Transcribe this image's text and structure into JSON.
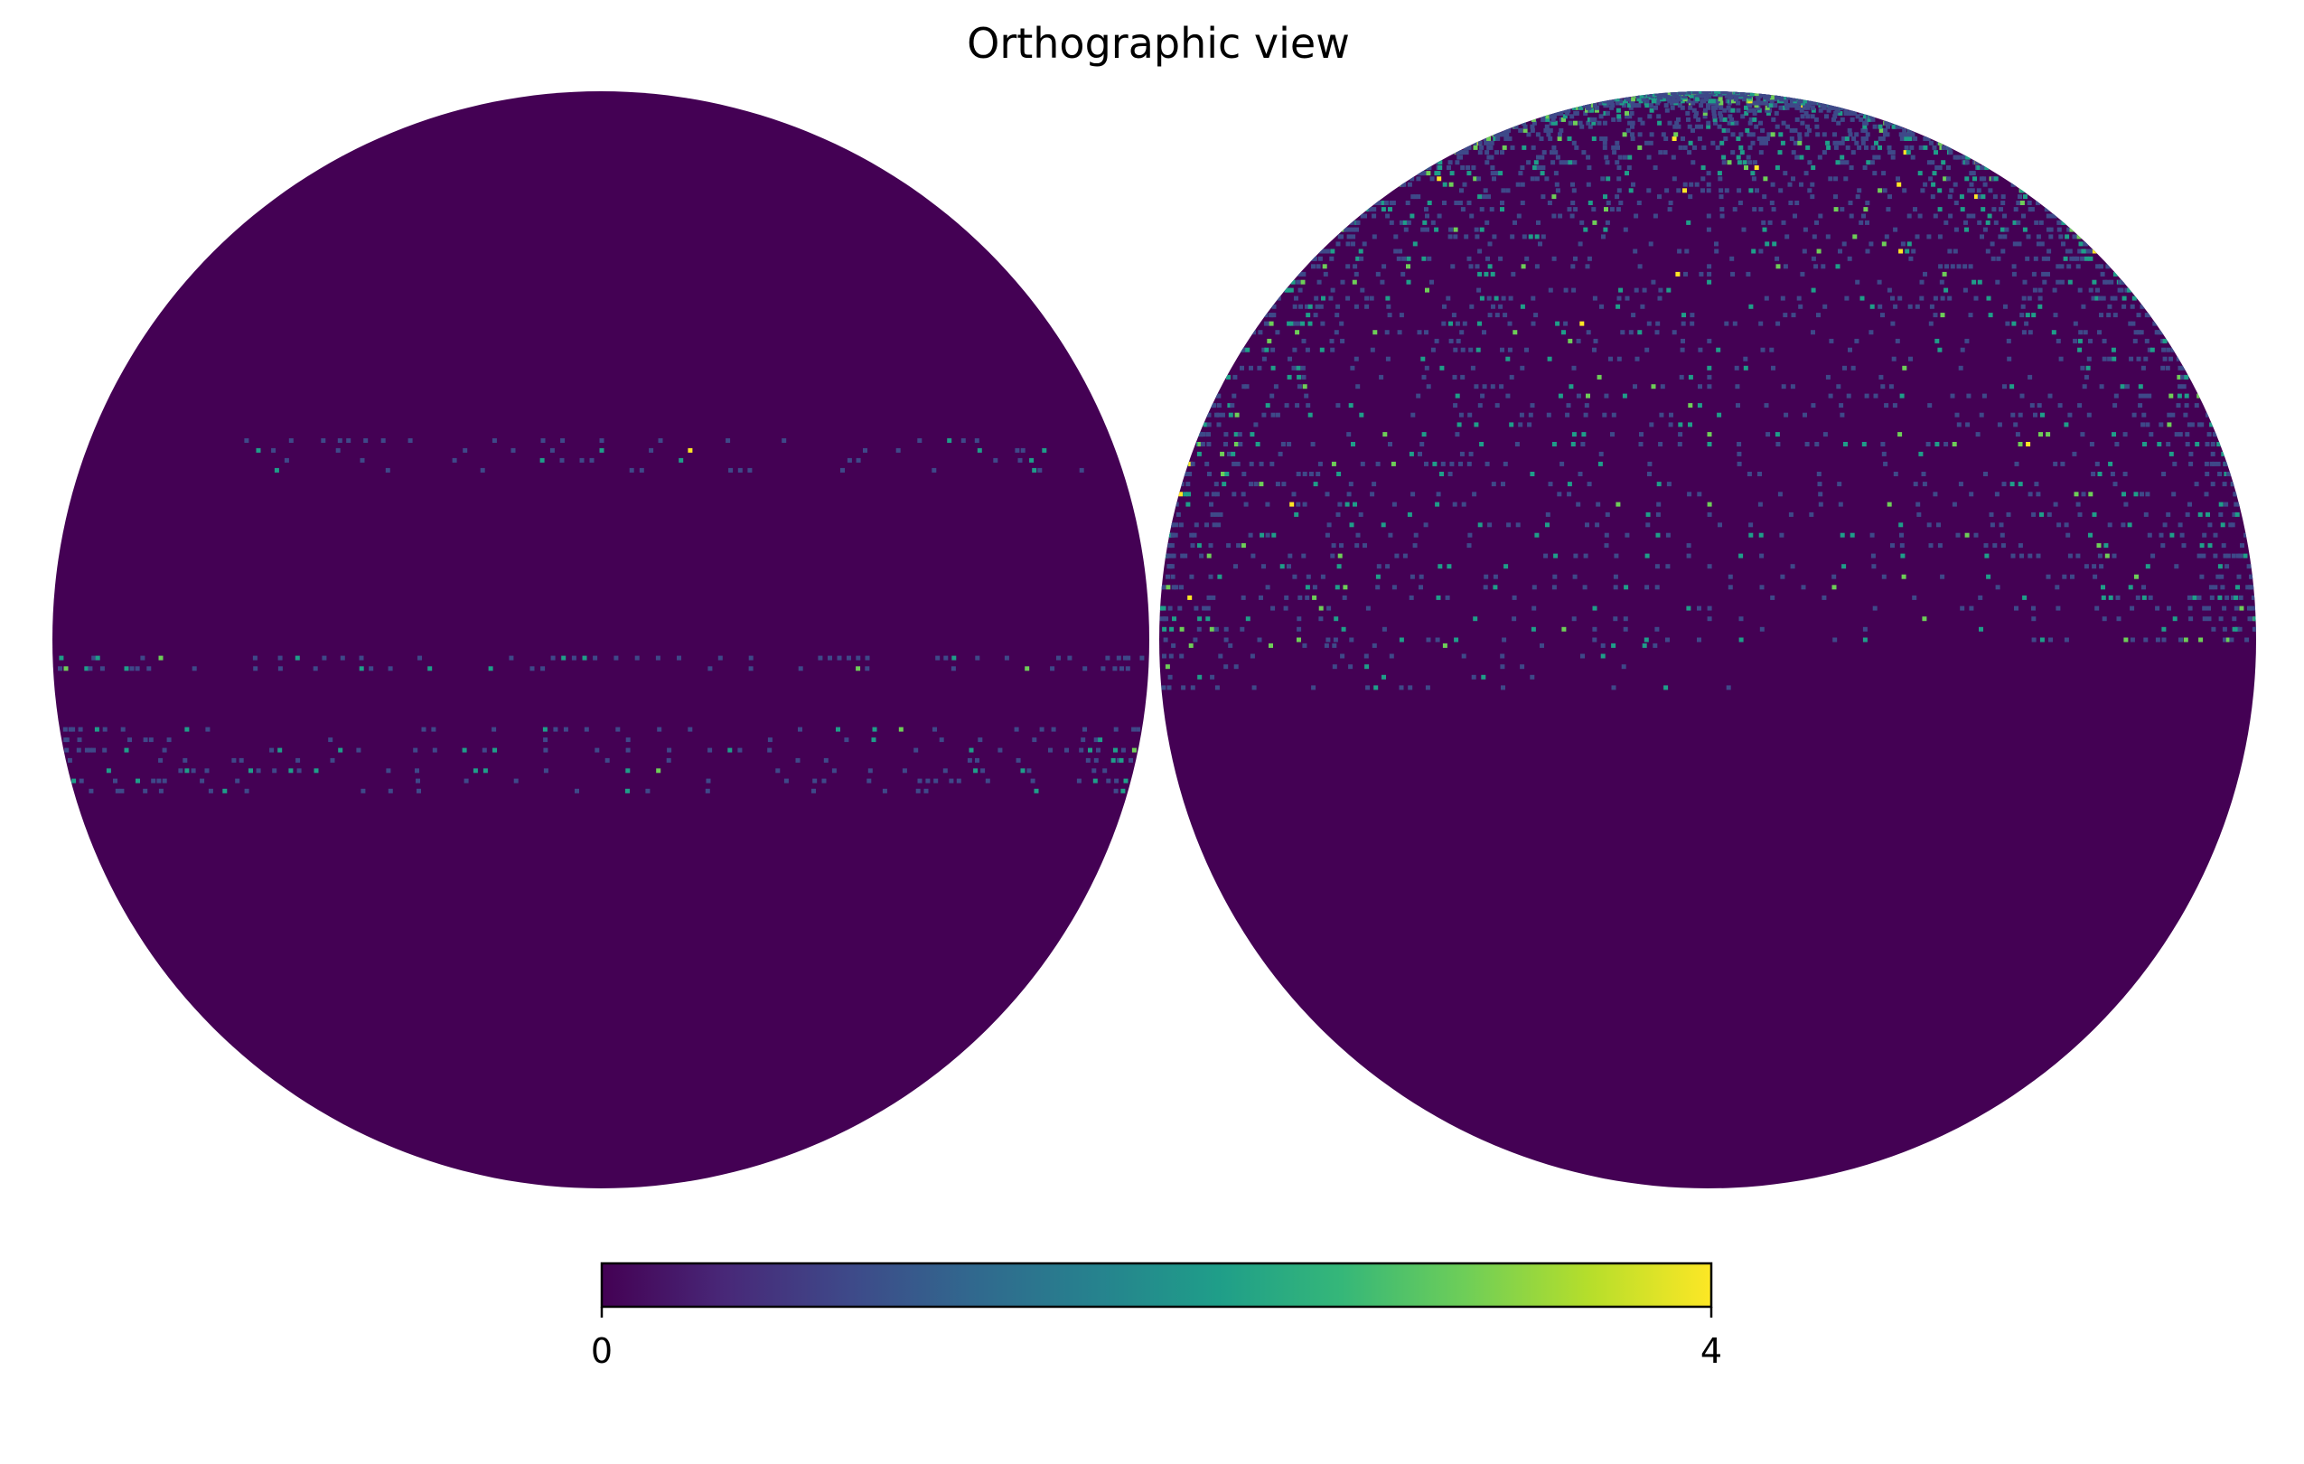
{
  "title": "Orthographic view",
  "projection": "orthographic",
  "colormap": "viridis",
  "background_color": "#ffffff",
  "colors": {
    "zero": "#440154",
    "viridis_stops": [
      "#440154",
      "#482878",
      "#3e4989",
      "#31688e",
      "#26828e",
      "#1f9e89",
      "#35b779",
      "#6ece58",
      "#b5de2b",
      "#fde725"
    ]
  },
  "colorbar": {
    "min": 0,
    "max": 4,
    "min_label": "0",
    "max_label": "4",
    "orientation": "horizontal",
    "placement": "bottom"
  },
  "hemispheres": [
    {
      "name": "left",
      "description_visible": false,
      "features": [
        {
          "kind": "band",
          "lat_range": [
            18,
            22
          ],
          "lon_range": [
            -45,
            68
          ],
          "density": 0.18
        },
        {
          "kind": "band",
          "lat_range": [
            -3,
            -1
          ],
          "lon_range": [
            -82,
            82
          ],
          "density": 0.22
        },
        {
          "kind": "band",
          "lat_range": [
            -16,
            -9
          ],
          "lon_range": [
            -84,
            84
          ],
          "density": 0.16
        }
      ]
    },
    {
      "name": "right",
      "features": [
        {
          "kind": "cap",
          "lat_range": [
            0,
            90
          ],
          "lon_range": [
            -90,
            90
          ],
          "density": 0.2
        },
        {
          "kind": "band",
          "lat_range": [
            -5,
            0
          ],
          "lon_range": [
            -88,
            5
          ],
          "density": 0.14
        }
      ]
    }
  ]
}
